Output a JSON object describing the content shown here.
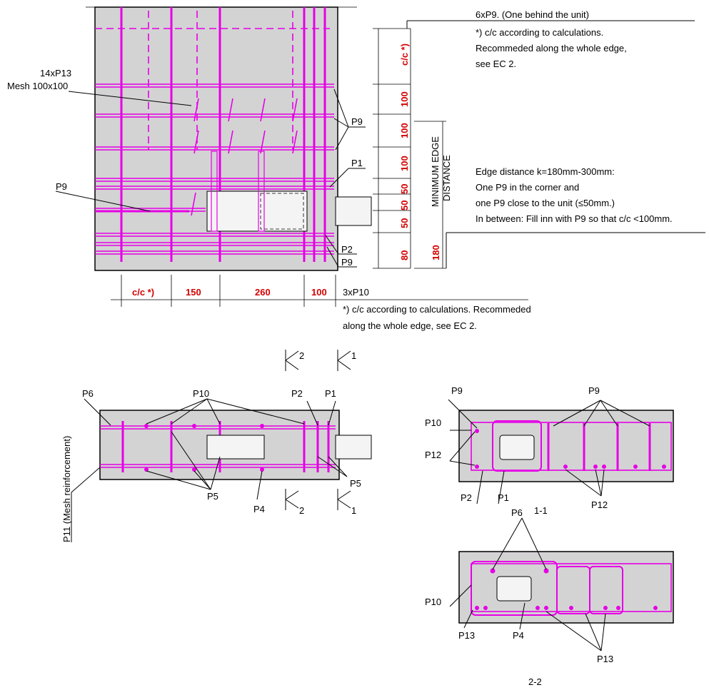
{
  "top_view": {
    "mesh_label": "14xP13",
    "mesh_spacing": "Mesh 100x100",
    "p9_left": "P9",
    "p9_right": "P9",
    "p1": "P1",
    "p2": "P2",
    "p9_bottom": "P9",
    "note_top": "6xP9. (One behind the unit)",
    "note_cc": "*) c/c according to calculations.",
    "note_recommend": "Recommeded along the whole edge,",
    "note_ec2": "see EC 2.",
    "edge_line1": "Edge distance k=180mm-300mm:",
    "edge_line2": "One P9 in the corner and",
    "edge_line3": "one P9 close to the unit (≤50mm.)",
    "edge_line4": "In between: Fill inn with P9 so that c/c <100mm.",
    "min_edge_1": "MINIMUM EDGE",
    "min_edge_2": "DISTANCE",
    "vdims": [
      "c/c *)",
      "100",
      "100",
      "100",
      "50",
      "50",
      "50",
      "80"
    ],
    "vdim_180": "180",
    "hdims": [
      "c/c *)",
      "150",
      "260",
      "100"
    ],
    "bottom_label": "3xP10",
    "bottom_note1": "*) c/c according to calculations. Recommeded",
    "bottom_note2": "along the whole edge, see EC 2."
  },
  "section_elev": {
    "cut_2_top": "2",
    "cut_1_top": "1",
    "cut_2_bot": "2",
    "cut_1_bot": "1",
    "p6": "P6",
    "p10": "P10",
    "p2": "P2",
    "p1": "P1",
    "p11": "P11 (Mesh reinforcement)",
    "p5_mid": "P5",
    "p5_right": "P5",
    "p4": "P4"
  },
  "section_11": {
    "title": "1-1",
    "p9_left": "P9",
    "p9_right": "P9",
    "p10": "P10",
    "p12_left": "P12",
    "p2": "P2",
    "p1": "P1",
    "p12_right": "P12"
  },
  "section_22": {
    "title": "2-2",
    "p6": "P6",
    "p10": "P10",
    "p13_left": "P13",
    "p4": "P4",
    "p13_right": "P13"
  },
  "colors": {
    "rebar": "#e600e6",
    "dimension": "#d40000",
    "concrete": "#d3d3d3"
  }
}
